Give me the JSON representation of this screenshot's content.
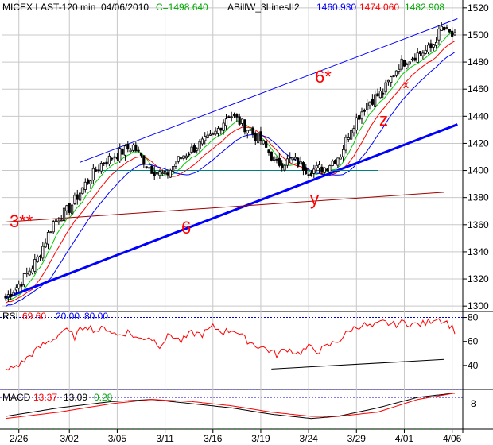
{
  "header": {
    "symbol": "MICEX LAST-120 min",
    "date": "04/06/2010",
    "close_label": "C=1498.640",
    "indicator": "ABillW_3LinesII2",
    "line1": "1460.930",
    "line2": "1474.060",
    "line3": "1482.908"
  },
  "colors": {
    "background": "#ffffff",
    "grid": "#c8c8c8",
    "candle": "#000000",
    "blue": "#0000ff",
    "red": "#ff0000",
    "green": "#00cc00",
    "brown": "#a00000",
    "teal": "#008080",
    "dotted": "#0000cc"
  },
  "annotations": {
    "wave_6_star": "6*",
    "wave_6": "6",
    "wave_3": "3**",
    "wave_x": "x",
    "wave_y": "y",
    "wave_z": "z"
  },
  "rsi_header": {
    "label": "RSI",
    "value": "69.60",
    "low": "20.00",
    "high": "80.00"
  },
  "macd_header": {
    "label": "MACD",
    "v1": "13.37",
    "v2": "13.09",
    "v3": "0.28"
  },
  "chart_data": [
    {
      "type": "candlestick",
      "panel": "price",
      "x_tick_labels": [
        "2/26",
        "3/02",
        "3/05",
        "3/11",
        "3/16",
        "3/19",
        "3/24",
        "3/29",
        "4/01",
        "4/06"
      ],
      "x_tick_bars": [
        5,
        24,
        42,
        60,
        78,
        96,
        114,
        132,
        150,
        168
      ],
      "bar_count": 170,
      "y_ticks": [
        1300,
        1320,
        1340,
        1360,
        1380,
        1400,
        1420,
        1440,
        1460,
        1480,
        1500,
        1520
      ],
      "ylim": [
        1296,
        1524
      ],
      "anchors_close": [
        [
          0,
          1306
        ],
        [
          6,
          1318
        ],
        [
          12,
          1335
        ],
        [
          18,
          1362
        ],
        [
          24,
          1372
        ],
        [
          30,
          1390
        ],
        [
          36,
          1405
        ],
        [
          42,
          1412
        ],
        [
          48,
          1418
        ],
        [
          54,
          1402
        ],
        [
          60,
          1396
        ],
        [
          66,
          1410
        ],
        [
          72,
          1418
        ],
        [
          78,
          1425
        ],
        [
          84,
          1442
        ],
        [
          88,
          1436
        ],
        [
          96,
          1422
        ],
        [
          102,
          1405
        ],
        [
          108,
          1408
        ],
        [
          114,
          1400
        ],
        [
          120,
          1402
        ],
        [
          126,
          1412
        ],
        [
          130,
          1432
        ],
        [
          136,
          1450
        ],
        [
          142,
          1458
        ],
        [
          148,
          1478
        ],
        [
          154,
          1485
        ],
        [
          160,
          1490
        ],
        [
          164,
          1505
        ],
        [
          169,
          1498
        ]
      ],
      "lines": [
        {
          "name": "channel-upper",
          "color": "blue",
          "from": [
            28,
            1406
          ],
          "to": [
            170,
            1512
          ]
        },
        {
          "name": "channel-lower",
          "color": "blue",
          "from": [
            0,
            1306
          ],
          "to": [
            170,
            1434
          ]
        },
        {
          "name": "horizontal-support",
          "color": "teal",
          "from": [
            35,
            1400
          ],
          "to": [
            140,
            1400
          ]
        },
        {
          "name": "wave-line",
          "color": "brown",
          "from": [
            0,
            1362
          ],
          "to": [
            165,
            1384
          ]
        }
      ]
    },
    {
      "type": "line",
      "panel": "rsi",
      "ylim": [
        20,
        85
      ],
      "y_ticks": [
        40,
        60,
        80
      ],
      "levels": [
        20,
        80
      ],
      "anchors": [
        [
          0,
          35
        ],
        [
          6,
          42
        ],
        [
          10,
          50
        ],
        [
          14,
          57
        ],
        [
          18,
          62
        ],
        [
          22,
          70
        ],
        [
          26,
          64
        ],
        [
          30,
          74
        ],
        [
          34,
          69
        ],
        [
          38,
          71
        ],
        [
          42,
          65
        ],
        [
          46,
          68
        ],
        [
          50,
          62
        ],
        [
          54,
          64
        ],
        [
          58,
          57
        ],
        [
          62,
          66
        ],
        [
          66,
          60
        ],
        [
          70,
          67
        ],
        [
          74,
          66
        ],
        [
          78,
          72
        ],
        [
          82,
          68
        ],
        [
          86,
          70
        ],
        [
          90,
          62
        ],
        [
          94,
          57
        ],
        [
          98,
          54
        ],
        [
          102,
          49
        ],
        [
          106,
          54
        ],
        [
          110,
          50
        ],
        [
          114,
          55
        ],
        [
          118,
          52
        ],
        [
          122,
          57
        ],
        [
          126,
          62
        ],
        [
          130,
          70
        ],
        [
          134,
          74
        ],
        [
          138,
          72
        ],
        [
          142,
          76
        ],
        [
          146,
          74
        ],
        [
          150,
          76
        ],
        [
          154,
          74
        ],
        [
          158,
          75
        ],
        [
          162,
          80
        ],
        [
          166,
          76
        ],
        [
          169,
          69
        ]
      ],
      "trendline": {
        "from": [
          100,
          37
        ],
        "to": [
          165,
          45
        ]
      }
    },
    {
      "type": "line",
      "panel": "macd",
      "ylim": [
        -4,
        14
      ],
      "y_ticks": [
        8
      ],
      "zero_line": 14,
      "series": [
        {
          "name": "MACD",
          "color": "black",
          "anchors": [
            [
              0,
              2
            ],
            [
              20,
              6
            ],
            [
              40,
              9
            ],
            [
              55,
              10
            ],
            [
              70,
              8
            ],
            [
              85,
              6
            ],
            [
              100,
              3
            ],
            [
              115,
              1
            ],
            [
              125,
              2
            ],
            [
              140,
              6
            ],
            [
              155,
              11
            ],
            [
              169,
              13
            ]
          ]
        },
        {
          "name": "signal",
          "color": "red",
          "anchors": [
            [
              0,
              1
            ],
            [
              20,
              4
            ],
            [
              40,
              8
            ],
            [
              55,
              10
            ],
            [
              70,
              9
            ],
            [
              85,
              7
            ],
            [
              100,
              4
            ],
            [
              115,
              2
            ],
            [
              125,
              2
            ],
            [
              140,
              4
            ],
            [
              155,
              10
            ],
            [
              169,
              13
            ]
          ]
        }
      ]
    }
  ]
}
